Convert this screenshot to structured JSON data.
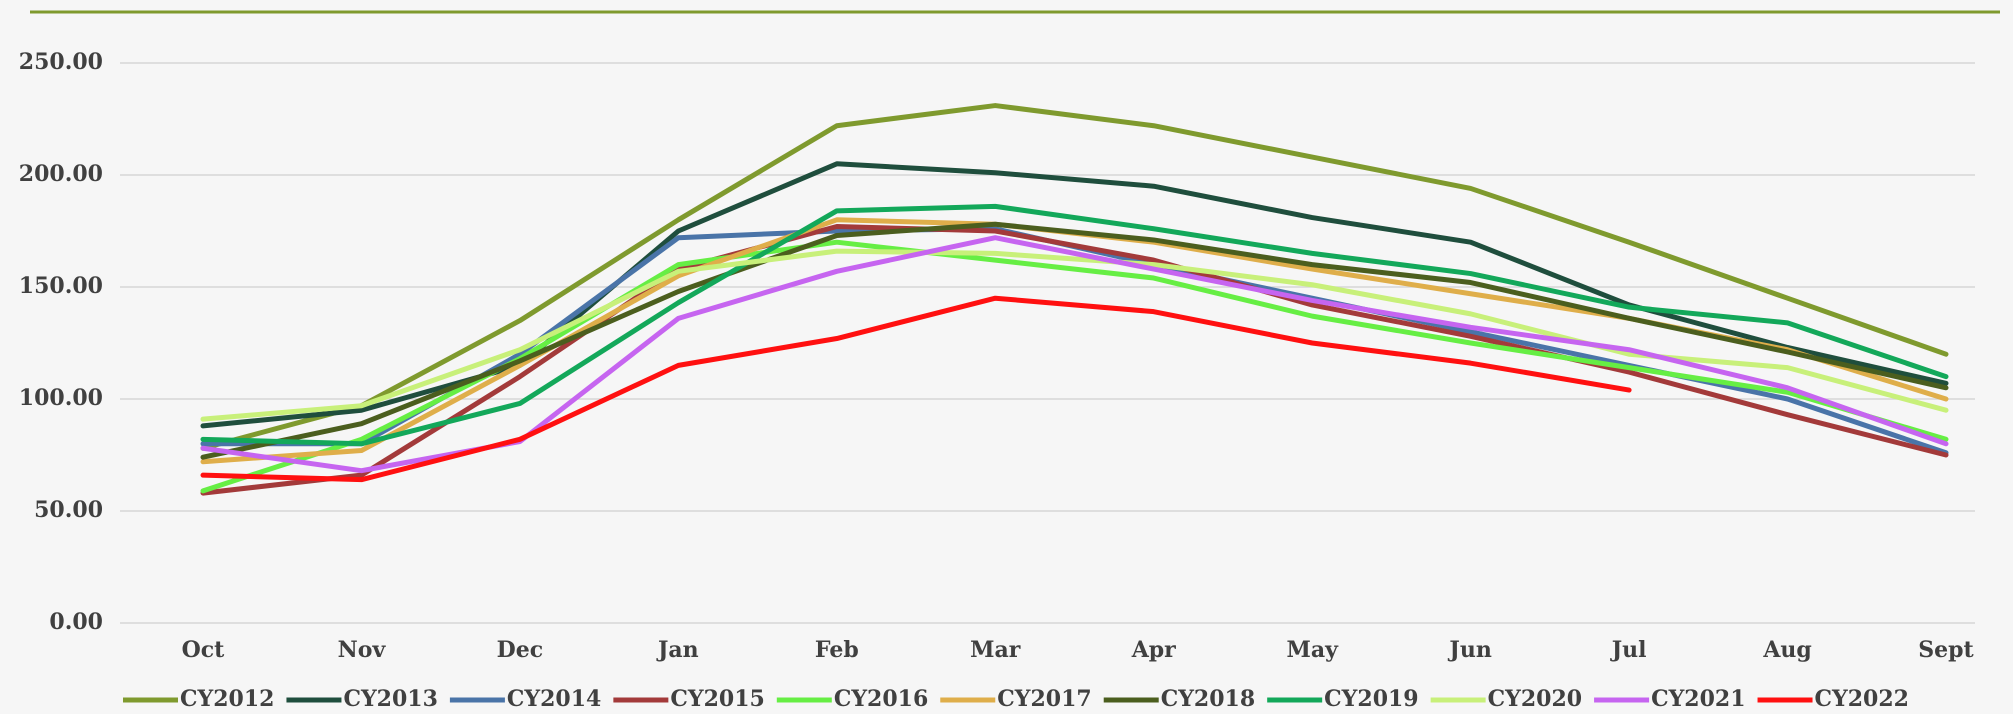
{
  "chart_data": {
    "type": "line",
    "categories": [
      "Oct",
      "Nov",
      "Dec",
      "Jan",
      "Feb",
      "Mar",
      "Apr",
      "May",
      "Jun",
      "Jul",
      "Aug",
      "Sept"
    ],
    "ylim": [
      0,
      250
    ],
    "yticks": [
      {
        "value": 0,
        "label": "0.00"
      },
      {
        "value": 50,
        "label": "50.00"
      },
      {
        "value": 100,
        "label": "100.00"
      },
      {
        "value": 150,
        "label": "150.00"
      },
      {
        "value": 200,
        "label": "200.00"
      },
      {
        "value": 250,
        "label": "250.00"
      }
    ],
    "grid": true,
    "legend": "bottom",
    "series": [
      {
        "name": "CY2012",
        "color": "#7f9a2e",
        "values": [
          78,
          97,
          135,
          180,
          222,
          231,
          222,
          208,
          194,
          170,
          145,
          120
        ]
      },
      {
        "name": "CY2013",
        "color": "#1f4e3d",
        "values": [
          88,
          95,
          115,
          175,
          205,
          201,
          195,
          181,
          170,
          142,
          123,
          107
        ]
      },
      {
        "name": "CY2014",
        "color": "#4a74a8",
        "values": [
          80,
          80,
          120,
          172,
          175,
          176,
          160,
          145,
          130,
          115,
          100,
          76
        ]
      },
      {
        "name": "CY2015",
        "color": "#a33a3a",
        "values": [
          58,
          66,
          110,
          158,
          177,
          175,
          162,
          142,
          128,
          112,
          93,
          75
        ]
      },
      {
        "name": "CY2016",
        "color": "#66ee44",
        "values": [
          59,
          82,
          118,
          160,
          170,
          162,
          154,
          137,
          125,
          114,
          103,
          82
        ]
      },
      {
        "name": "CY2017",
        "color": "#dfae4a",
        "values": [
          72,
          77,
          115,
          155,
          180,
          178,
          170,
          158,
          147,
          136,
          122,
          100
        ]
      },
      {
        "name": "CY2018",
        "color": "#4b5e1e",
        "values": [
          74,
          89,
          117,
          148,
          173,
          178,
          171,
          160,
          152,
          136,
          121,
          105
        ]
      },
      {
        "name": "CY2019",
        "color": "#13a85a",
        "values": [
          82,
          80,
          98,
          143,
          184,
          186,
          176,
          165,
          156,
          141,
          134,
          110
        ]
      },
      {
        "name": "CY2020",
        "color": "#c8f07a",
        "values": [
          91,
          97,
          122,
          157,
          166,
          165,
          160,
          151,
          138,
          120,
          114,
          95
        ]
      },
      {
        "name": "CY2021",
        "color": "#c665f0",
        "values": [
          78,
          68,
          81,
          136,
          157,
          172,
          158,
          144,
          132,
          122,
          105,
          80
        ]
      },
      {
        "name": "CY2022",
        "color": "#ff1010",
        "values": [
          66,
          64,
          82,
          115,
          127,
          145,
          139,
          125,
          116,
          104,
          null,
          null
        ]
      }
    ]
  }
}
